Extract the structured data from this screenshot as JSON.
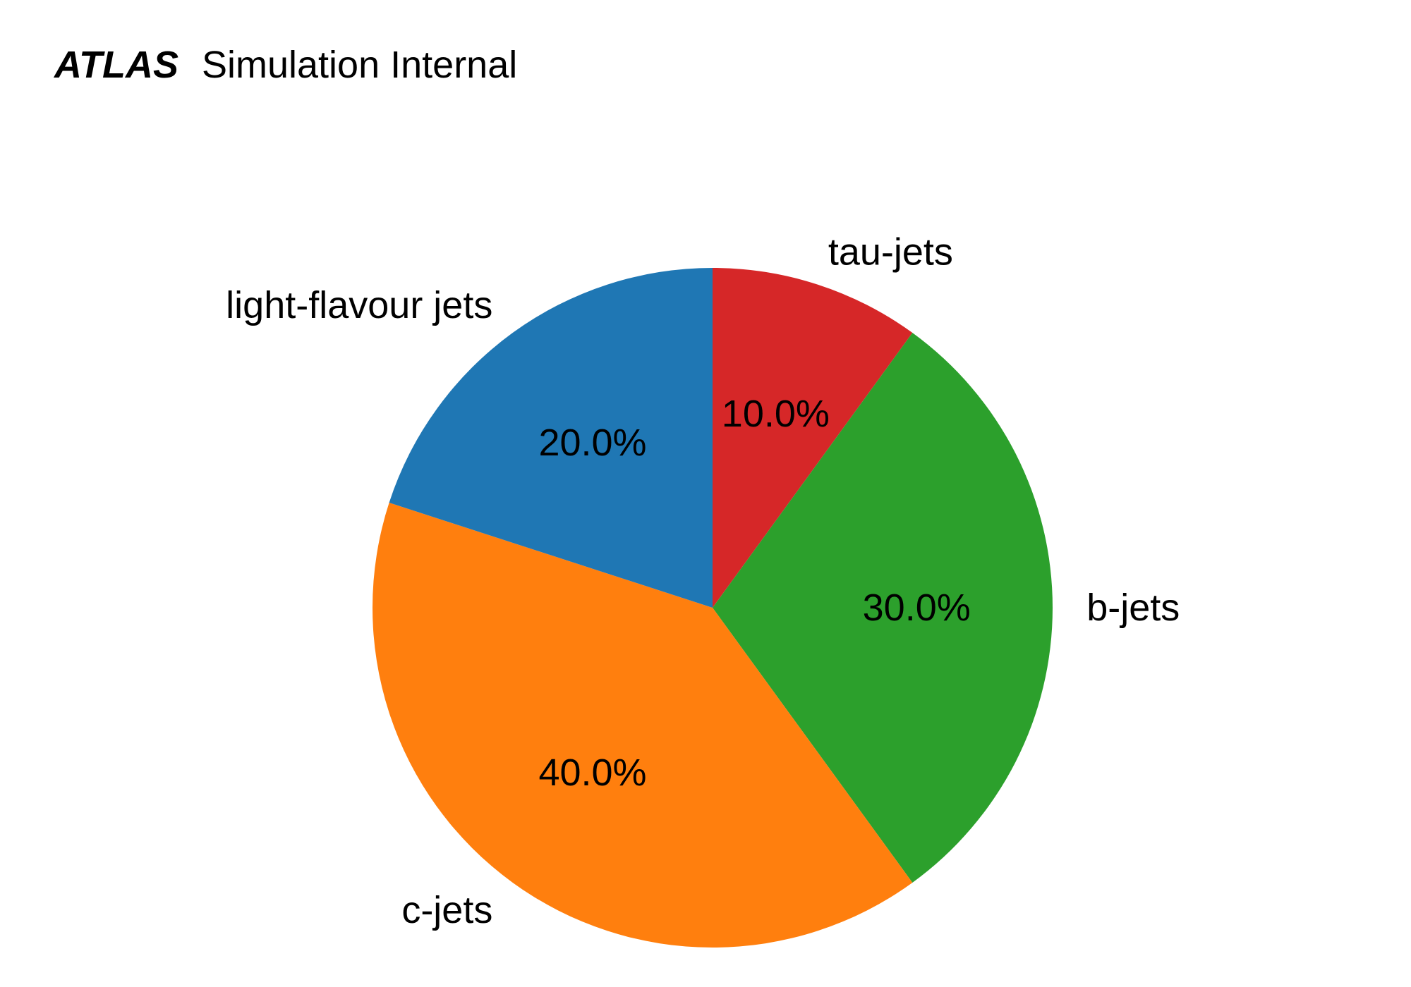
{
  "header": {
    "brand": "ATLAS",
    "suffix": "Simulation Internal"
  },
  "chart_data": {
    "type": "pie",
    "start_angle_deg": 90,
    "direction": "clockwise",
    "slices": [
      {
        "name": "tau-jets",
        "value": 10.0,
        "pct_label": "10.0%",
        "color": "#d62728"
      },
      {
        "name": "b-jets",
        "value": 30.0,
        "pct_label": "30.0%",
        "color": "#2ca02c"
      },
      {
        "name": "c-jets",
        "value": 40.0,
        "pct_label": "40.0%",
        "color": "#ff7f0e"
      },
      {
        "name": "light-flavour jets",
        "value": 20.0,
        "pct_label": "20.0%",
        "color": "#1f77b4"
      }
    ]
  }
}
